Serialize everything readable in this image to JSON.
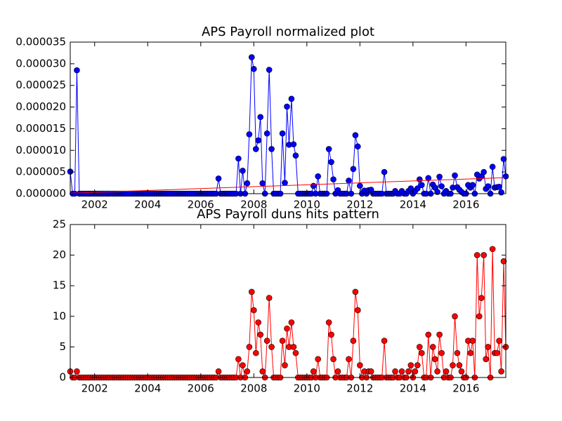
{
  "chart_data": [
    {
      "type": "line",
      "title": "APS Payroll normalized plot",
      "markers": true,
      "x": [
        2001.08,
        2001.17,
        2001.25,
        2001.33,
        2001.42,
        2001.5,
        2001.58,
        2001.67,
        2001.75,
        2001.83,
        2001.92,
        2002,
        2002.08,
        2002.17,
        2002.25,
        2002.33,
        2002.42,
        2002.5,
        2002.58,
        2002.67,
        2002.75,
        2002.83,
        2002.92,
        2003,
        2003.08,
        2003.17,
        2003.25,
        2003.33,
        2003.42,
        2003.5,
        2003.58,
        2003.67,
        2003.75,
        2003.83,
        2003.92,
        2004,
        2004.08,
        2004.17,
        2004.25,
        2004.33,
        2004.42,
        2004.5,
        2004.58,
        2004.67,
        2004.75,
        2004.83,
        2004.92,
        2005,
        2005.08,
        2005.17,
        2005.25,
        2005.33,
        2005.42,
        2005.5,
        2005.58,
        2005.67,
        2005.75,
        2005.83,
        2005.92,
        2006,
        2006.08,
        2006.17,
        2006.25,
        2006.33,
        2006.42,
        2006.5,
        2006.58,
        2006.67,
        2006.75,
        2006.83,
        2006.92,
        2007,
        2007.08,
        2007.17,
        2007.25,
        2007.33,
        2007.42,
        2007.5,
        2007.58,
        2007.67,
        2007.75,
        2007.83,
        2007.92,
        2008,
        2008.08,
        2008.17,
        2008.25,
        2008.33,
        2008.42,
        2008.5,
        2008.58,
        2008.67,
        2008.75,
        2008.83,
        2008.92,
        2009,
        2009.08,
        2009.17,
        2009.25,
        2009.33,
        2009.42,
        2009.5,
        2009.58,
        2009.67,
        2009.75,
        2009.83,
        2009.92,
        2010,
        2010.08,
        2010.17,
        2010.25,
        2010.33,
        2010.42,
        2010.5,
        2010.58,
        2010.67,
        2010.75,
        2010.83,
        2010.92,
        2011,
        2011.08,
        2011.17,
        2011.25,
        2011.33,
        2011.42,
        2011.5,
        2011.58,
        2011.67,
        2011.75,
        2011.83,
        2011.92,
        2012,
        2012.08,
        2012.17,
        2012.25,
        2012.33,
        2012.42,
        2012.5,
        2012.58,
        2012.67,
        2012.75,
        2012.83,
        2012.92,
        2013,
        2013.08,
        2013.17,
        2013.25,
        2013.33,
        2013.42,
        2013.5,
        2013.58,
        2013.67,
        2013.75,
        2013.83,
        2013.92,
        2014,
        2014.08,
        2014.17,
        2014.25,
        2014.33,
        2014.42,
        2014.5,
        2014.58,
        2014.67,
        2014.75,
        2014.83,
        2014.92,
        2015,
        2015.08,
        2015.17,
        2015.25,
        2015.33,
        2015.42,
        2015.5,
        2015.58,
        2015.67,
        2015.75,
        2015.83,
        2015.92,
        2016,
        2016.08,
        2016.17,
        2016.25,
        2016.33,
        2016.42,
        2016.5,
        2016.58,
        2016.67,
        2016.75,
        2016.83,
        2016.92,
        2017,
        2017.08,
        2017.17,
        2017.25,
        2017.33,
        2017.42,
        2017.5
      ],
      "series": [
        {
          "color": "#0000ff",
          "values": [
            5.1e-06,
            0,
            0,
            2.85e-05,
            0,
            0,
            0,
            0,
            0,
            0,
            0,
            0,
            0,
            0,
            0,
            0,
            0,
            0,
            0,
            0,
            0,
            0,
            0,
            0,
            0,
            0,
            0,
            0,
            0,
            0,
            0,
            0,
            0,
            0,
            0,
            0,
            0,
            0,
            0,
            0,
            0,
            0,
            0,
            0,
            0,
            0,
            0,
            0,
            0,
            0,
            0,
            0,
            0,
            0,
            0,
            0,
            0,
            0,
            0,
            0,
            0,
            0,
            0,
            0,
            0,
            0,
            0,
            3.5e-06,
            0,
            0,
            0,
            0,
            0,
            0,
            0,
            0,
            8.1e-06,
            0,
            5.3e-06,
            0,
            2.4e-06,
            1.37e-05,
            3.15e-05,
            2.88e-05,
            1.03e-05,
            1.23e-05,
            1.77e-05,
            2.4e-06,
            0,
            1.39e-05,
            2.86e-05,
            1.03e-05,
            0,
            0,
            0,
            0,
            1.39e-05,
            2.5e-06,
            2.01e-05,
            1.13e-05,
            2.19e-05,
            1.14e-05,
            8.8e-06,
            0,
            0,
            0,
            0,
            0,
            0,
            0,
            1.8e-06,
            0,
            4e-06,
            0,
            0,
            0,
            0,
            1.03e-05,
            7.3e-06,
            3.3e-06,
            0,
            8e-07,
            0,
            0,
            0,
            0,
            3e-06,
            0,
            5.7e-06,
            1.35e-05,
            1.09e-05,
            1.8e-06,
            0,
            7e-07,
            0,
            8e-07,
            9e-07,
            0,
            0,
            0,
            0,
            0,
            5e-06,
            0,
            0,
            0,
            0,
            6e-07,
            0,
            0,
            6e-07,
            0,
            0,
            6e-07,
            1.2e-06,
            0,
            6e-07,
            1.2e-06,
            3.3e-06,
            2e-06,
            0,
            0,
            3.6e-06,
            0,
            2.1e-06,
            1.4e-06,
            4e-07,
            3.9e-06,
            1.7e-06,
            0,
            6e-07,
            0,
            0,
            1.4e-06,
            4.2e-06,
            1.5e-06,
            9e-07,
            4e-07,
            0,
            0,
            2e-06,
            1.4e-06,
            2e-06,
            0,
            4.4e-06,
            3.5e-06,
            4e-06,
            5e-06,
            1.1e-06,
            1.7e-06,
            0,
            6.2e-06,
            1.4e-06,
            1.5e-06,
            1.6e-06,
            3e-07,
            8e-06,
            4e-06
          ]
        },
        {
          "color": "#ff0000",
          "markers": false,
          "x": [
            2001.08,
            2017.5
          ],
          "values": [
            1e-07,
            3.7e-06
          ]
        }
      ],
      "xlim": [
        2001.08,
        2017.5
      ],
      "xticks": [
        2002,
        2004,
        2006,
        2008,
        2010,
        2012,
        2014,
        2016
      ],
      "ylim": [
        0,
        3.5e-05
      ],
      "yticks": [
        {
          "value": 0,
          "label": "0.000000"
        },
        {
          "value": 5e-06,
          "label": "0.000005"
        },
        {
          "value": 1e-05,
          "label": "0.000010"
        },
        {
          "value": 1.5e-05,
          "label": "0.000015"
        },
        {
          "value": 2e-05,
          "label": "0.000020"
        },
        {
          "value": 2.5e-05,
          "label": "0.000025"
        },
        {
          "value": 3e-05,
          "label": "0.000030"
        },
        {
          "value": 3.5e-05,
          "label": "0.000035"
        }
      ]
    },
    {
      "type": "line",
      "title": "APS Payroll duns hits pattern",
      "markers": true,
      "x": [
        2001.08,
        2001.17,
        2001.25,
        2001.33,
        2001.42,
        2001.5,
        2001.58,
        2001.67,
        2001.75,
        2001.83,
        2001.92,
        2002,
        2002.08,
        2002.17,
        2002.25,
        2002.33,
        2002.42,
        2002.5,
        2002.58,
        2002.67,
        2002.75,
        2002.83,
        2002.92,
        2003,
        2003.08,
        2003.17,
        2003.25,
        2003.33,
        2003.42,
        2003.5,
        2003.58,
        2003.67,
        2003.75,
        2003.83,
        2003.92,
        2004,
        2004.08,
        2004.17,
        2004.25,
        2004.33,
        2004.42,
        2004.5,
        2004.58,
        2004.67,
        2004.75,
        2004.83,
        2004.92,
        2005,
        2005.08,
        2005.17,
        2005.25,
        2005.33,
        2005.42,
        2005.5,
        2005.58,
        2005.67,
        2005.75,
        2005.83,
        2005.92,
        2006,
        2006.08,
        2006.17,
        2006.25,
        2006.33,
        2006.42,
        2006.5,
        2006.58,
        2006.67,
        2006.75,
        2006.83,
        2006.92,
        2007,
        2007.08,
        2007.17,
        2007.25,
        2007.33,
        2007.42,
        2007.5,
        2007.58,
        2007.67,
        2007.75,
        2007.83,
        2007.92,
        2008,
        2008.08,
        2008.17,
        2008.25,
        2008.33,
        2008.42,
        2008.5,
        2008.58,
        2008.67,
        2008.75,
        2008.83,
        2008.92,
        2009,
        2009.08,
        2009.17,
        2009.25,
        2009.33,
        2009.42,
        2009.5,
        2009.58,
        2009.67,
        2009.75,
        2009.83,
        2009.92,
        2010,
        2010.08,
        2010.17,
        2010.25,
        2010.33,
        2010.42,
        2010.5,
        2010.58,
        2010.67,
        2010.75,
        2010.83,
        2010.92,
        2011,
        2011.08,
        2011.17,
        2011.25,
        2011.33,
        2011.42,
        2011.5,
        2011.58,
        2011.67,
        2011.75,
        2011.83,
        2011.92,
        2012,
        2012.08,
        2012.17,
        2012.25,
        2012.33,
        2012.42,
        2012.5,
        2012.58,
        2012.67,
        2012.75,
        2012.83,
        2012.92,
        2013,
        2013.08,
        2013.17,
        2013.25,
        2013.33,
        2013.42,
        2013.5,
        2013.58,
        2013.67,
        2013.75,
        2013.83,
        2013.92,
        2014,
        2014.08,
        2014.17,
        2014.25,
        2014.33,
        2014.42,
        2014.5,
        2014.58,
        2014.67,
        2014.75,
        2014.83,
        2014.92,
        2015,
        2015.08,
        2015.17,
        2015.25,
        2015.33,
        2015.42,
        2015.5,
        2015.58,
        2015.67,
        2015.75,
        2015.83,
        2015.92,
        2016,
        2016.08,
        2016.17,
        2016.25,
        2016.33,
        2016.42,
        2016.5,
        2016.58,
        2016.67,
        2016.75,
        2016.83,
        2016.92,
        2017,
        2017.08,
        2017.17,
        2017.25,
        2017.33,
        2017.42,
        2017.5
      ],
      "series": [
        {
          "color": "#ff0000",
          "values": [
            1,
            0,
            0,
            1,
            0,
            0,
            0,
            0,
            0,
            0,
            0,
            0,
            0,
            0,
            0,
            0,
            0,
            0,
            0,
            0,
            0,
            0,
            0,
            0,
            0,
            0,
            0,
            0,
            0,
            0,
            0,
            0,
            0,
            0,
            0,
            0,
            0,
            0,
            0,
            0,
            0,
            0,
            0,
            0,
            0,
            0,
            0,
            0,
            0,
            0,
            0,
            0,
            0,
            0,
            0,
            0,
            0,
            0,
            0,
            0,
            0,
            0,
            0,
            0,
            0,
            0,
            0,
            1,
            0,
            0,
            0,
            0,
            0,
            0,
            0,
            0,
            3,
            0,
            2,
            0,
            1,
            5,
            14,
            11,
            4,
            9,
            7,
            1,
            0,
            6,
            13,
            5,
            0,
            0,
            0,
            0,
            6,
            2,
            8,
            5,
            9,
            5,
            4,
            0,
            0,
            0,
            0,
            0,
            0,
            0,
            1,
            0,
            3,
            0,
            0,
            0,
            0,
            9,
            7,
            3,
            0,
            1,
            0,
            0,
            0,
            0,
            3,
            0,
            6,
            14,
            11,
            2,
            0,
            1,
            0,
            1,
            1,
            0,
            0,
            0,
            0,
            0,
            6,
            0,
            0,
            0,
            0,
            1,
            0,
            0,
            1,
            0,
            0,
            1,
            2,
            0,
            1,
            2,
            5,
            4,
            0,
            0,
            7,
            0,
            5,
            3,
            1,
            7,
            4,
            0,
            1,
            0,
            0,
            2,
            10,
            4,
            2,
            1,
            0,
            0,
            6,
            4,
            6,
            0,
            20,
            10,
            13,
            20,
            3,
            5,
            0,
            21,
            4,
            4,
            6,
            1,
            19,
            5
          ]
        }
      ],
      "xlim": [
        2001.08,
        2017.5
      ],
      "xticks": [
        2002,
        2004,
        2006,
        2008,
        2010,
        2012,
        2014,
        2016
      ],
      "ylim": [
        0,
        25
      ],
      "yticks": [
        0,
        5,
        10,
        15,
        20,
        25
      ]
    }
  ]
}
